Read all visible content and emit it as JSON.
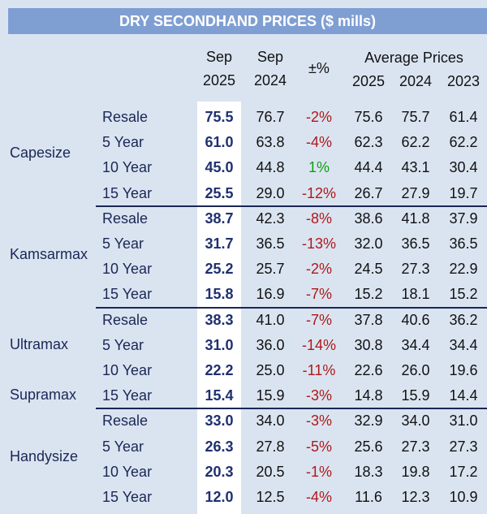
{
  "title": "DRY SECONDHAND PRICES ($ mills)",
  "headers": {
    "sep2025_line1": "Sep",
    "sep2025_line2": "2025",
    "sep2024_line1": "Sep",
    "sep2024_line2": "2024",
    "change": "±%",
    "avg_group": "Average Prices",
    "avg2025": "2025",
    "avg2024": "2024",
    "avg2023": "2023"
  },
  "segments": [
    {
      "name": "Capesize",
      "rows": [
        {
          "age": "Resale",
          "sep2025": "75.5",
          "sep2024": "76.7",
          "change": "-2%",
          "avg2025": "75.6",
          "avg2024": "75.7",
          "avg2023": "61.4"
        },
        {
          "age": "5 Year",
          "sep2025": "61.0",
          "sep2024": "63.8",
          "change": "-4%",
          "avg2025": "62.3",
          "avg2024": "62.2",
          "avg2023": "62.2"
        },
        {
          "age": "10 Year",
          "sep2025": "45.0",
          "sep2024": "44.8",
          "change": "1%",
          "avg2025": "44.4",
          "avg2024": "43.1",
          "avg2023": "30.4"
        },
        {
          "age": "15 Year",
          "sep2025": "25.5",
          "sep2024": "29.0",
          "change": "-12%",
          "avg2025": "26.7",
          "avg2024": "27.9",
          "avg2023": "19.7"
        }
      ]
    },
    {
      "name": "Kamsarmax",
      "rows": [
        {
          "age": "Resale",
          "sep2025": "38.7",
          "sep2024": "42.3",
          "change": "-8%",
          "avg2025": "38.6",
          "avg2024": "41.8",
          "avg2023": "37.9"
        },
        {
          "age": "5 Year",
          "sep2025": "31.7",
          "sep2024": "36.5",
          "change": "-13%",
          "avg2025": "32.0",
          "avg2024": "36.5",
          "avg2023": "36.5"
        },
        {
          "age": "10 Year",
          "sep2025": "25.2",
          "sep2024": "25.7",
          "change": "-2%",
          "avg2025": "24.5",
          "avg2024": "27.3",
          "avg2023": "22.9"
        },
        {
          "age": "15 Year",
          "sep2025": "15.8",
          "sep2024": "16.9",
          "change": "-7%",
          "avg2025": "15.2",
          "avg2024": "18.1",
          "avg2023": "15.2"
        }
      ]
    },
    {
      "name": "Ultramax",
      "name2": "Supramax",
      "rows": [
        {
          "age": "Resale",
          "sep2025": "38.3",
          "sep2024": "41.0",
          "change": "-7%",
          "avg2025": "37.8",
          "avg2024": "40.6",
          "avg2023": "36.2"
        },
        {
          "age": "5 Year",
          "sep2025": "31.0",
          "sep2024": "36.0",
          "change": "-14%",
          "avg2025": "30.8",
          "avg2024": "34.4",
          "avg2023": "34.4"
        },
        {
          "age": "10 Year",
          "sep2025": "22.2",
          "sep2024": "25.0",
          "change": "-11%",
          "avg2025": "22.6",
          "avg2024": "26.0",
          "avg2023": "19.6"
        },
        {
          "age": "15 Year",
          "sep2025": "15.4",
          "sep2024": "15.9",
          "change": "-3%",
          "avg2025": "14.8",
          "avg2024": "15.9",
          "avg2023": "14.4"
        }
      ]
    },
    {
      "name": "Handysize",
      "rows": [
        {
          "age": "Resale",
          "sep2025": "33.0",
          "sep2024": "34.0",
          "change": "-3%",
          "avg2025": "32.9",
          "avg2024": "34.0",
          "avg2023": "31.0"
        },
        {
          "age": "5 Year",
          "sep2025": "26.3",
          "sep2024": "27.8",
          "change": "-5%",
          "avg2025": "25.6",
          "avg2024": "27.3",
          "avg2023": "27.3"
        },
        {
          "age": "10 Year",
          "sep2025": "20.3",
          "sep2024": "20.5",
          "change": "-1%",
          "avg2025": "18.3",
          "avg2024": "19.8",
          "avg2023": "17.2"
        },
        {
          "age": "15 Year",
          "sep2025": "12.0",
          "sep2024": "12.5",
          "change": "-4%",
          "avg2025": "11.6",
          "avg2024": "12.3",
          "avg2023": "10.9"
        }
      ]
    }
  ],
  "colors": {
    "title_bg": "#7f9fd3",
    "panel_bg": "#dae4f1",
    "negative": "#b01818",
    "positive": "#10a010",
    "bold_value": "#1f3070"
  }
}
